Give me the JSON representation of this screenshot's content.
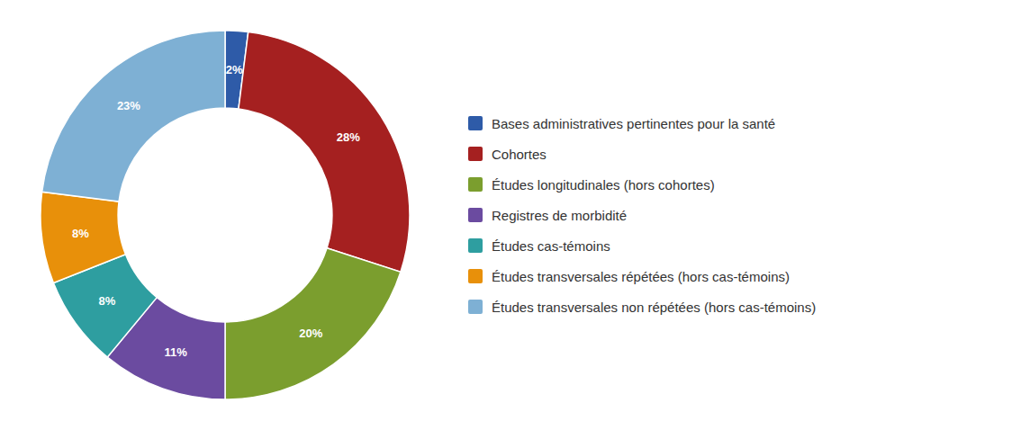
{
  "chart_data": {
    "type": "pie",
    "categories": [
      "Bases administratives pertinentes pour la santé",
      "Cohortes",
      "Études longitudinales (hors cohortes)",
      "Registres de morbidité",
      "Études cas-témoins",
      "Études transversales répétées (hors cas-témoins)",
      "Études transversales non répétées (hors cas-témoins)"
    ],
    "values": [
      2,
      28,
      20,
      11,
      8,
      8,
      23
    ],
    "value_labels": [
      "2%",
      "28%",
      "20%",
      "11%",
      "8%",
      "8%",
      "23%"
    ],
    "colors": [
      "#2E5BA8",
      "#A52020",
      "#7B9E2E",
      "#6B4BA0",
      "#2E9EA0",
      "#E8900A",
      "#7EB0D4"
    ],
    "data_labels": true,
    "legend": "right"
  }
}
